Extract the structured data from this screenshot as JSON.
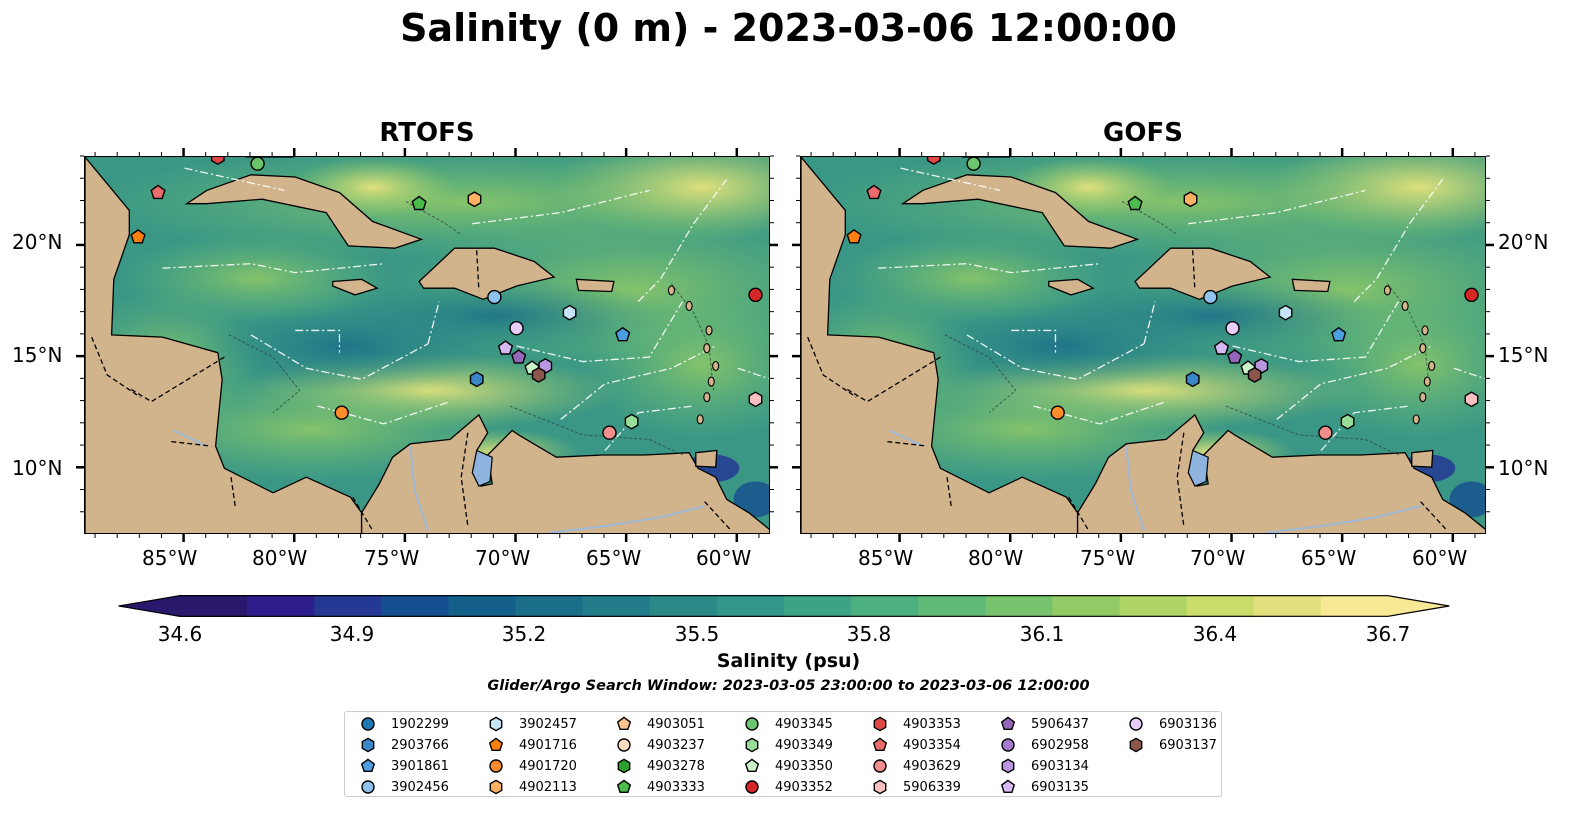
{
  "title": "Salinity (0 m) - 2023-03-06 12:00:00",
  "panels": [
    {
      "title": "RTOFS"
    },
    {
      "title": "GOFS"
    }
  ],
  "lat_labels": [
    "20°N",
    "15°N",
    "10°N"
  ],
  "lon_labels": [
    "85°W",
    "80°W",
    "75°W",
    "70°W",
    "65°W",
    "60°W"
  ],
  "map_extent": {
    "lon_min": -89.5,
    "lon_max": -58.5,
    "lat_min": 7.0,
    "lat_max": 24.0
  },
  "colorbar": {
    "label": "Salinity (psu)",
    "ticks": [
      "34.6",
      "34.9",
      "35.2",
      "35.5",
      "35.8",
      "36.1",
      "36.4",
      "36.7"
    ],
    "min": 34.6,
    "max": 36.7,
    "colormap": "haline",
    "colors": [
      "#2a186c",
      "#2d1e8b",
      "#243894",
      "#154f8f",
      "#15608b",
      "#1b6e8a",
      "#237c8a",
      "#2a8987",
      "#32968a",
      "#3da385",
      "#4caf7f",
      "#5fba77",
      "#77c36d",
      "#92cb66",
      "#aed464",
      "#cadc6a",
      "#e3e17e",
      "#f7e995"
    ]
  },
  "search_window": "Glider/Argo Search Window: 2023-03-05 23:00:00 to 2023-03-06 12:00:00",
  "legend": [
    {
      "id": "1902299",
      "marker": "circle",
      "color": "#1f77b4"
    },
    {
      "id": "2903766",
      "marker": "hexagon",
      "color": "#3a86c8"
    },
    {
      "id": "3901861",
      "marker": "pentagon",
      "color": "#4c9ee0"
    },
    {
      "id": "3902456",
      "marker": "circle",
      "color": "#8fc3ee"
    },
    {
      "id": "3902457",
      "marker": "hexagon",
      "color": "#c6e4f7"
    },
    {
      "id": "4901716",
      "marker": "pentagon",
      "color": "#ff7f0e"
    },
    {
      "id": "4901720",
      "marker": "circle",
      "color": "#ff8c2a"
    },
    {
      "id": "4902113",
      "marker": "hexagon",
      "color": "#ffb063"
    },
    {
      "id": "4903051",
      "marker": "pentagon",
      "color": "#ffc48e"
    },
    {
      "id": "4903237",
      "marker": "circle",
      "color": "#ffdcbb"
    },
    {
      "id": "4903278",
      "marker": "hexagon",
      "color": "#2ca02c"
    },
    {
      "id": "4903333",
      "marker": "pentagon",
      "color": "#4cbb4c"
    },
    {
      "id": "4903345",
      "marker": "circle",
      "color": "#6cc46c"
    },
    {
      "id": "4903349",
      "marker": "hexagon",
      "color": "#98de98"
    },
    {
      "id": "4903350",
      "marker": "pentagon",
      "color": "#c9f2c9"
    },
    {
      "id": "4903352",
      "marker": "circle",
      "color": "#d62728"
    },
    {
      "id": "4903353",
      "marker": "hexagon",
      "color": "#e04848"
    },
    {
      "id": "4903354",
      "marker": "pentagon",
      "color": "#eb6b6b"
    },
    {
      "id": "4903629",
      "marker": "circle",
      "color": "#f28e8e"
    },
    {
      "id": "5906339",
      "marker": "hexagon",
      "color": "#f8c0c0"
    },
    {
      "id": "5906437",
      "marker": "pentagon",
      "color": "#9467bd"
    },
    {
      "id": "6902958",
      "marker": "circle",
      "color": "#a57ccf"
    },
    {
      "id": "6903134",
      "marker": "hexagon",
      "color": "#b897e0"
    },
    {
      "id": "6903135",
      "marker": "pentagon",
      "color": "#d6b8f2"
    },
    {
      "id": "6903136",
      "marker": "circle",
      "color": "#e8cdf7"
    },
    {
      "id": "6903137",
      "marker": "hexagon",
      "color": "#8c564b"
    }
  ],
  "floats": [
    {
      "id": "3902456",
      "lon": -71.0,
      "lat": 17.7
    },
    {
      "id": "6903136",
      "lon": -70.0,
      "lat": 16.3
    },
    {
      "id": "3902457",
      "lon": -67.6,
      "lat": 17.0
    },
    {
      "id": "3901861",
      "lon": -65.2,
      "lat": 16.0
    },
    {
      "id": "4903352",
      "lon": -59.2,
      "lat": 17.8
    },
    {
      "id": "6903135",
      "lon": -70.5,
      "lat": 15.4
    },
    {
      "id": "5906437",
      "lon": -69.9,
      "lat": 15.0
    },
    {
      "id": "6903134",
      "lon": -68.7,
      "lat": 14.6
    },
    {
      "id": "4903350",
      "lon": -69.3,
      "lat": 14.5
    },
    {
      "id": "6903137",
      "lon": -69.0,
      "lat": 14.2
    },
    {
      "id": "2903766",
      "lon": -71.8,
      "lat": 14.0
    },
    {
      "id": "4901720",
      "lon": -77.9,
      "lat": 12.5
    },
    {
      "id": "4903349",
      "lon": -64.8,
      "lat": 12.1
    },
    {
      "id": "4903629",
      "lon": -65.8,
      "lat": 11.6
    },
    {
      "id": "5906339",
      "lon": -59.2,
      "lat": 13.1
    },
    {
      "id": "4901716",
      "lon": -87.1,
      "lat": 20.4
    },
    {
      "id": "4903354",
      "lon": -86.2,
      "lat": 22.4
    },
    {
      "id": "4903333",
      "lon": -74.4,
      "lat": 21.9
    },
    {
      "id": "4902113",
      "lon": -71.9,
      "lat": 22.1
    },
    {
      "id": "4903345",
      "lon": -81.7,
      "lat": 23.7
    },
    {
      "id": "4903353",
      "lon": -83.5,
      "lat": 24.0
    }
  ]
}
